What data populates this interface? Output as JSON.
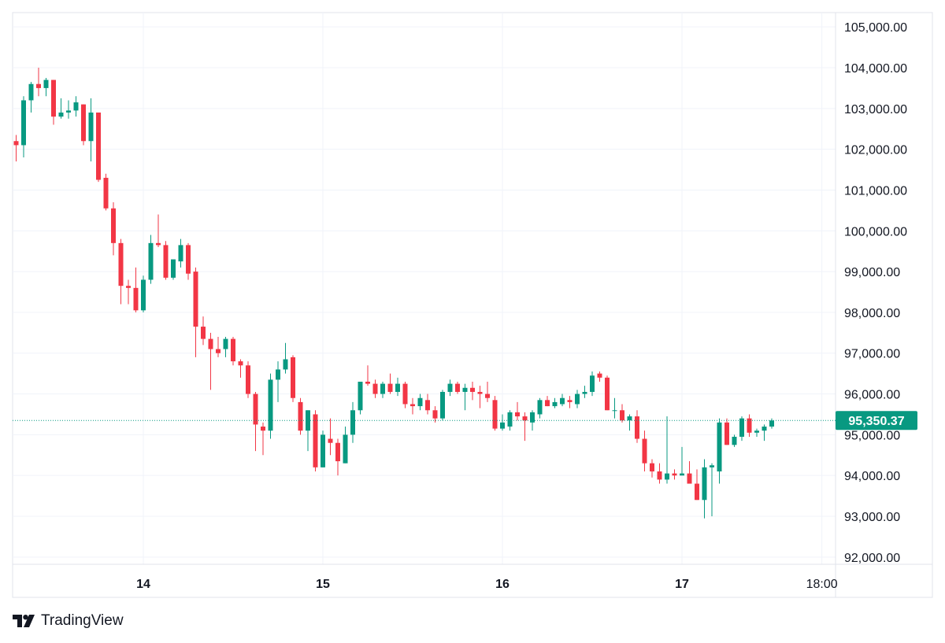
{
  "brand": {
    "name": "TradingView",
    "logo_icon": "tradingview-logo-icon"
  },
  "colors": {
    "up": "#26a69a",
    "down": "#ef5350",
    "up_fill": "#089981",
    "down_fill": "#f23645",
    "price_line": "#089981",
    "grid": "#f0f3fa",
    "text": "#131722"
  },
  "chart_data": {
    "type": "candlestick",
    "title": "",
    "xlabel": "",
    "ylabel": "",
    "ylim": [
      92000,
      105000
    ],
    "y_ticks": [
      "105,000.00",
      "104,000.00",
      "103,000.00",
      "102,000.00",
      "101,000.00",
      "100,000.00",
      "99,000.00",
      "98,000.00",
      "97,000.00",
      "96,000.00",
      "95,000.00",
      "94,000.00",
      "93,000.00",
      "92,000.00"
    ],
    "y_tick_values": [
      105000,
      104000,
      103000,
      102000,
      101000,
      100000,
      99000,
      98000,
      97000,
      96000,
      95000,
      94000,
      93000,
      92000
    ],
    "x_ticks": [
      "14",
      "15",
      "16",
      "17",
      "18:00"
    ],
    "x_tick_candle_index": [
      17,
      41,
      65,
      89,
      107.7
    ],
    "current_price": 95350.37,
    "current_price_label": "95,350.37",
    "grid": true,
    "ohlc": [
      [
        102200,
        102350,
        101700,
        102100
      ],
      [
        102100,
        103300,
        101800,
        103200
      ],
      [
        103200,
        103650,
        102900,
        103600
      ],
      [
        103600,
        104000,
        103300,
        103500
      ],
      [
        103500,
        103750,
        103300,
        103700
      ],
      [
        103700,
        103700,
        102600,
        102800
      ],
      [
        102800,
        103250,
        102750,
        102900
      ],
      [
        102900,
        103200,
        102750,
        102950
      ],
      [
        102950,
        103300,
        102800,
        103150
      ],
      [
        103100,
        103100,
        102100,
        102200
      ],
      [
        102200,
        103250,
        101700,
        102900
      ],
      [
        102900,
        102900,
        101200,
        101250
      ],
      [
        101300,
        101400,
        100500,
        100550
      ],
      [
        100550,
        100700,
        99400,
        99700
      ],
      [
        99700,
        99800,
        98200,
        98650
      ],
      [
        98650,
        98800,
        98200,
        98600
      ],
      [
        98600,
        99100,
        98000,
        98050
      ],
      [
        98050,
        98900,
        98000,
        98800
      ],
      [
        98800,
        99900,
        98700,
        99700
      ],
      [
        99700,
        100400,
        99600,
        99650
      ],
      [
        99650,
        99750,
        98800,
        98850
      ],
      [
        98850,
        99300,
        98800,
        99300
      ],
      [
        99250,
        99800,
        99100,
        99650
      ],
      [
        99650,
        99700,
        98800,
        98950
      ],
      [
        99000,
        99100,
        96900,
        97650
      ],
      [
        97650,
        97900,
        97200,
        97350
      ],
      [
        97350,
        97500,
        96100,
        97100
      ],
      [
        97100,
        97400,
        96900,
        97000
      ],
      [
        97100,
        97400,
        96900,
        97350
      ],
      [
        97350,
        97400,
        96700,
        96800
      ],
      [
        96800,
        96850,
        96400,
        96700
      ],
      [
        96700,
        96800,
        95900,
        96000
      ],
      [
        96000,
        96050,
        94600,
        95250
      ],
      [
        95200,
        95300,
        94500,
        95100
      ],
      [
        95100,
        96500,
        94900,
        96350
      ],
      [
        96350,
        96800,
        95800,
        96600
      ],
      [
        96600,
        97250,
        96500,
        96850
      ],
      [
        96900,
        96950,
        95800,
        95900
      ],
      [
        95800,
        95900,
        95000,
        95100
      ],
      [
        95100,
        95600,
        94600,
        95600
      ],
      [
        95500,
        95600,
        94100,
        94200
      ],
      [
        94200,
        95100,
        94200,
        95000
      ],
      [
        94900,
        95400,
        94500,
        94800
      ],
      [
        94800,
        94900,
        94000,
        94350
      ],
      [
        94300,
        95200,
        94300,
        95000
      ],
      [
        95000,
        95800,
        94800,
        95600
      ],
      [
        95600,
        96300,
        95500,
        96300
      ],
      [
        96300,
        96700,
        96200,
        96250
      ],
      [
        96250,
        96350,
        95900,
        96000
      ],
      [
        96000,
        96300,
        95900,
        96250
      ],
      [
        96250,
        96500,
        96000,
        96050
      ],
      [
        96050,
        96400,
        95950,
        96250
      ],
      [
        96250,
        96300,
        95650,
        95750
      ],
      [
        95750,
        95900,
        95500,
        95700
      ],
      [
        95700,
        96000,
        95600,
        95900
      ],
      [
        95850,
        96000,
        95500,
        95600
      ],
      [
        95600,
        95700,
        95300,
        95400
      ],
      [
        95400,
        96100,
        95350,
        96050
      ],
      [
        96050,
        96350,
        95950,
        96250
      ],
      [
        96250,
        96300,
        96000,
        96050
      ],
      [
        96050,
        96250,
        95600,
        96150
      ],
      [
        96150,
        96300,
        95850,
        96050
      ],
      [
        96050,
        96200,
        95650,
        96000
      ],
      [
        96000,
        96300,
        95800,
        95900
      ],
      [
        95850,
        95950,
        95100,
        95150
      ],
      [
        95150,
        95500,
        95100,
        95300
      ],
      [
        95200,
        95600,
        95100,
        95550
      ],
      [
        95550,
        95800,
        95350,
        95450
      ],
      [
        95450,
        95550,
        94850,
        95350
      ],
      [
        95300,
        95600,
        95100,
        95550
      ],
      [
        95500,
        95900,
        95400,
        95850
      ],
      [
        95850,
        95950,
        95700,
        95700
      ],
      [
        95700,
        95900,
        95650,
        95800
      ],
      [
        95750,
        96000,
        95700,
        95900
      ],
      [
        95850,
        95950,
        95650,
        95800
      ],
      [
        95750,
        96100,
        95650,
        96000
      ],
      [
        96000,
        96200,
        95900,
        96050
      ],
      [
        96050,
        96550,
        95950,
        96450
      ],
      [
        96500,
        96550,
        96300,
        96400
      ],
      [
        96400,
        96450,
        95600,
        95600
      ],
      [
        95600,
        95900,
        95400,
        95600
      ],
      [
        95600,
        95750,
        95300,
        95350
      ],
      [
        95350,
        95500,
        95100,
        95450
      ],
      [
        95450,
        95600,
        94800,
        94900
      ],
      [
        94900,
        95100,
        94100,
        94300
      ],
      [
        94300,
        94400,
        93950,
        94100
      ],
      [
        94100,
        94300,
        93800,
        93900
      ],
      [
        93900,
        95450,
        93800,
        94050
      ],
      [
        94050,
        94150,
        93900,
        94000
      ],
      [
        94000,
        94700,
        94000,
        94050
      ],
      [
        94050,
        94350,
        93800,
        93800
      ],
      [
        93800,
        94150,
        93400,
        93400
      ],
      [
        93400,
        94400,
        92950,
        94200
      ],
      [
        94200,
        94300,
        93000,
        94250
      ],
      [
        94100,
        95400,
        93800,
        95300
      ],
      [
        95300,
        95400,
        94750,
        94750
      ],
      [
        94750,
        95000,
        94700,
        94950
      ],
      [
        94950,
        95450,
        94850,
        95400
      ],
      [
        95400,
        95500,
        94950,
        95050
      ],
      [
        95050,
        95150,
        94950,
        95100
      ],
      [
        95100,
        95250,
        94850,
        95200
      ],
      [
        95200,
        95400,
        95150,
        95350
      ]
    ]
  }
}
